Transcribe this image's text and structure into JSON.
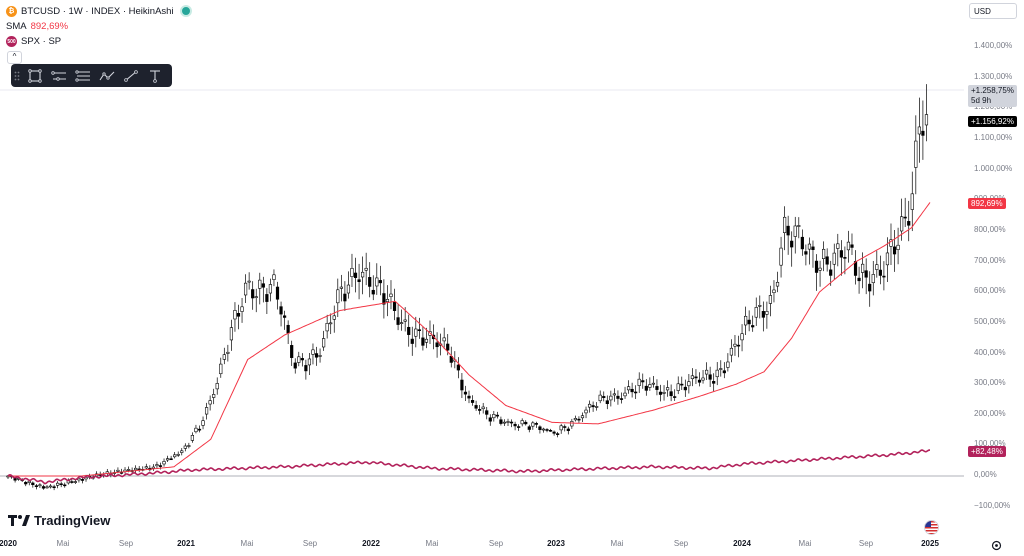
{
  "header": {
    "symbol_line": "BTCUSD · 1W · INDEX · HeikinAshi",
    "sma_label": "SMA",
    "sma_value": "892,69%",
    "compare_badge": "500",
    "compare_line": "SPX · SP",
    "collapse_glyph": "^"
  },
  "currency_selector": {
    "label": "USD"
  },
  "price_axis": {
    "labels": [
      "1.400,00%",
      "1.300,00%",
      "1.200,00%",
      "1.100,00%",
      "1.000,00%",
      "900,00%",
      "800,00%",
      "700,00%",
      "600,00%",
      "500,00%",
      "400,00%",
      "300,00%",
      "200,00%",
      "100,00%",
      "0,00%",
      "−100,00%"
    ]
  },
  "tags": {
    "current_change": "+1.258,75%",
    "countdown": "5d 9h",
    "crosshair_value": "+1.156,92%",
    "sma_tag": "892,69%",
    "spx_tag": "+82,48%"
  },
  "time_axis": [
    {
      "label": "2020",
      "year": true
    },
    {
      "label": "Mai",
      "year": false
    },
    {
      "label": "Sep",
      "year": false
    },
    {
      "label": "2021",
      "year": true
    },
    {
      "label": "Mai",
      "year": false
    },
    {
      "label": "Sep",
      "year": false
    },
    {
      "label": "2022",
      "year": true
    },
    {
      "label": "Mai",
      "year": false
    },
    {
      "label": "Sep",
      "year": false
    },
    {
      "label": "2023",
      "year": true
    },
    {
      "label": "Mai",
      "year": false
    },
    {
      "label": "Sep",
      "year": false
    },
    {
      "label": "2024",
      "year": true
    },
    {
      "label": "Mai",
      "year": false
    },
    {
      "label": "Sep",
      "year": false
    },
    {
      "label": "2025",
      "year": true
    }
  ],
  "branding": {
    "logo_text": "TradingView"
  },
  "colors": {
    "bull": "#ffffff",
    "bear": "#000000",
    "wick": "#000000",
    "sma": "#f23645",
    "spx": "#b2225b",
    "tag_dark": "#000000",
    "tag_gray": "#d1d4dc"
  },
  "chart_data": {
    "type": "candlestick",
    "ylim": [
      -100,
      1400
    ],
    "unit": "%",
    "anchors_btc_close": [
      [
        2020.0,
        0
      ],
      [
        2020.2,
        -40
      ],
      [
        2020.5,
        5
      ],
      [
        2020.8,
        30
      ],
      [
        2020.95,
        80
      ],
      [
        2021.05,
        180
      ],
      [
        2021.15,
        330
      ],
      [
        2021.3,
        640
      ],
      [
        2021.45,
        600
      ],
      [
        2021.55,
        370
      ],
      [
        2021.7,
        410
      ],
      [
        2021.8,
        580
      ],
      [
        2021.9,
        700
      ],
      [
        2022.0,
        600
      ],
      [
        2022.15,
        500
      ],
      [
        2022.3,
        430
      ],
      [
        2022.4,
        410
      ],
      [
        2022.5,
        250
      ],
      [
        2022.6,
        190
      ],
      [
        2022.8,
        170
      ],
      [
        2022.95,
        140
      ],
      [
        2023.1,
        190
      ],
      [
        2023.25,
        260
      ],
      [
        2023.45,
        290
      ],
      [
        2023.6,
        280
      ],
      [
        2023.75,
        310
      ],
      [
        2023.85,
        340
      ],
      [
        2024.0,
        470
      ],
      [
        2024.15,
        600
      ],
      [
        2024.2,
        800
      ],
      [
        2024.35,
        720
      ],
      [
        2024.55,
        720
      ],
      [
        2024.62,
        640
      ],
      [
        2024.75,
        700
      ],
      [
        2024.85,
        770
      ],
      [
        2024.9,
        880
      ],
      [
        2024.95,
        1230
      ],
      [
        2025.0,
        1180
      ]
    ],
    "anchors_sma": [
      [
        2020.0,
        0
      ],
      [
        2020.4,
        0
      ],
      [
        2020.9,
        30
      ],
      [
        2021.1,
        120
      ],
      [
        2021.3,
        380
      ],
      [
        2021.5,
        460
      ],
      [
        2021.8,
        540
      ],
      [
        2022.1,
        570
      ],
      [
        2022.3,
        460
      ],
      [
        2022.5,
        330
      ],
      [
        2022.7,
        230
      ],
      [
        2022.95,
        175
      ],
      [
        2023.2,
        170
      ],
      [
        2023.5,
        215
      ],
      [
        2023.75,
        260
      ],
      [
        2023.95,
        300
      ],
      [
        2024.1,
        340
      ],
      [
        2024.25,
        450
      ],
      [
        2024.4,
        600
      ],
      [
        2024.6,
        700
      ],
      [
        2024.75,
        750
      ],
      [
        2024.9,
        810
      ],
      [
        2025.0,
        892.69
      ]
    ],
    "anchors_spx": [
      [
        2020.0,
        0
      ],
      [
        2020.2,
        -20
      ],
      [
        2020.4,
        -5
      ],
      [
        2020.8,
        10
      ],
      [
        2021.0,
        20
      ],
      [
        2021.5,
        30
      ],
      [
        2021.95,
        45
      ],
      [
        2022.3,
        25
      ],
      [
        2022.8,
        15
      ],
      [
        2023.0,
        20
      ],
      [
        2023.5,
        30
      ],
      [
        2023.8,
        25
      ],
      [
        2024.0,
        40
      ],
      [
        2024.4,
        55
      ],
      [
        2024.8,
        70
      ],
      [
        2025.0,
        82.48
      ]
    ]
  }
}
